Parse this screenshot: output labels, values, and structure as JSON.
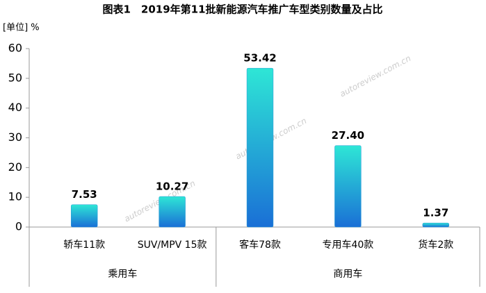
{
  "chart_data": {
    "type": "bar",
    "title": "图表1　2019年第11批新能源汽车推广车型类别数量及占比",
    "y_label": "[单位] %",
    "categories": [
      "轿车11款",
      "SUV/MPV 15款",
      "客车78款",
      "专用车40款",
      "货车2款"
    ],
    "group_labels": [
      "乘用车",
      "乘用车",
      "商用车",
      "商用车",
      "商用车"
    ],
    "values": [
      7.53,
      10.27,
      53.42,
      27.4,
      1.37
    ],
    "value_labels": [
      "7.53",
      "10.27",
      "53.42",
      "27.40",
      "1.37"
    ],
    "colors": [
      "#2ee6d6",
      "#1a6fd6"
    ],
    "watermark": "autoreview.com.cn",
    "ylim": [
      0,
      60
    ],
    "yticks": [
      0,
      10,
      20,
      30,
      40,
      50,
      60
    ],
    "grid": false
  }
}
